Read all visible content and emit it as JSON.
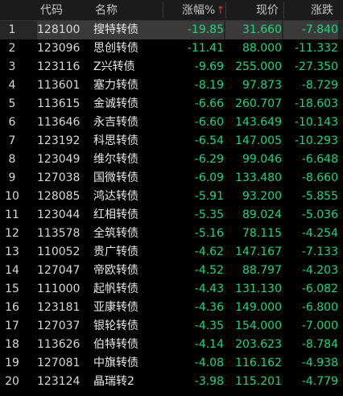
{
  "header": {
    "code": "代码",
    "name": "名称",
    "pct": "涨幅%",
    "pct_sort": "↑",
    "price": "现价",
    "change": "涨跌"
  },
  "colors": {
    "down": "#1fd47a",
    "sort_arrow": "#e5322d",
    "background": "#000000"
  },
  "rows": [
    {
      "idx": "1",
      "code": "128100",
      "name": "搜特转债",
      "pct": "-19.85",
      "price": "31.660",
      "change": "-7.840"
    },
    {
      "idx": "2",
      "code": "123096",
      "name": "思创转债",
      "pct": "-11.41",
      "price": "88.000",
      "change": "-11.332"
    },
    {
      "idx": "3",
      "code": "123116",
      "name": "Z兴转债",
      "pct": "-9.69",
      "price": "255.000",
      "change": "-27.350"
    },
    {
      "idx": "4",
      "code": "113601",
      "name": "塞力转债",
      "pct": "-8.19",
      "price": "97.873",
      "change": "-8.729"
    },
    {
      "idx": "5",
      "code": "113615",
      "name": "金诚转债",
      "pct": "-6.66",
      "price": "260.707",
      "change": "-18.603"
    },
    {
      "idx": "6",
      "code": "113646",
      "name": "永吉转债",
      "pct": "-6.60",
      "price": "143.649",
      "change": "-10.143"
    },
    {
      "idx": "7",
      "code": "123192",
      "name": "科思转债",
      "pct": "-6.54",
      "price": "147.005",
      "change": "-10.293"
    },
    {
      "idx": "8",
      "code": "123049",
      "name": "维尔转债",
      "pct": "-6.29",
      "price": "99.046",
      "change": "-6.648"
    },
    {
      "idx": "9",
      "code": "127038",
      "name": "国微转债",
      "pct": "-6.09",
      "price": "133.480",
      "change": "-8.660"
    },
    {
      "idx": "10",
      "code": "128085",
      "name": "鸿达转债",
      "pct": "-5.91",
      "price": "93.200",
      "change": "-5.855"
    },
    {
      "idx": "11",
      "code": "123044",
      "name": "红相转债",
      "pct": "-5.35",
      "price": "89.024",
      "change": "-5.036"
    },
    {
      "idx": "12",
      "code": "113578",
      "name": "全筑转债",
      "pct": "-5.16",
      "price": "78.115",
      "change": "-4.254"
    },
    {
      "idx": "13",
      "code": "110052",
      "name": "贵广转债",
      "pct": "-4.62",
      "price": "147.167",
      "change": "-7.133"
    },
    {
      "idx": "14",
      "code": "127047",
      "name": "帝欧转债",
      "pct": "-4.52",
      "price": "88.797",
      "change": "-4.203"
    },
    {
      "idx": "15",
      "code": "111000",
      "name": "起帆转债",
      "pct": "-4.43",
      "price": "131.130",
      "change": "-6.082"
    },
    {
      "idx": "16",
      "code": "123181",
      "name": "亚康转债",
      "pct": "-4.36",
      "price": "149.000",
      "change": "-6.800"
    },
    {
      "idx": "17",
      "code": "127037",
      "name": "银轮转债",
      "pct": "-4.35",
      "price": "154.000",
      "change": "-7.000"
    },
    {
      "idx": "18",
      "code": "113626",
      "name": "伯特转债",
      "pct": "-4.14",
      "price": "203.623",
      "change": "-8.784"
    },
    {
      "idx": "19",
      "code": "127081",
      "name": "中旗转债",
      "pct": "-4.08",
      "price": "116.162",
      "change": "-4.938"
    },
    {
      "idx": "20",
      "code": "123124",
      "name": "晶瑞转2",
      "pct": "-3.98",
      "price": "115.201",
      "change": "-4.779"
    }
  ]
}
